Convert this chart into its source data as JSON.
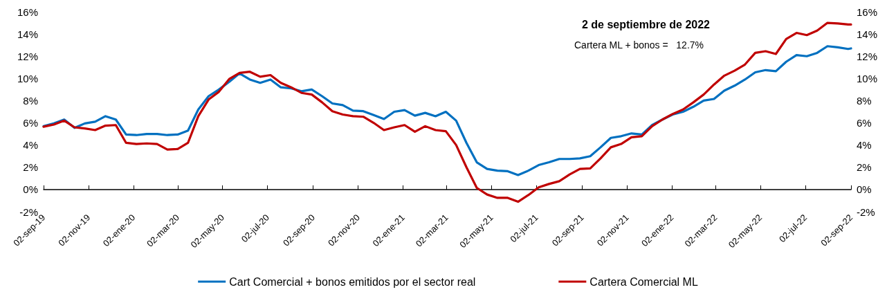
{
  "chart_data": {
    "type": "line",
    "title": "2 de septiembre de 2022",
    "annotations": [
      "Cartera ML + bonos =   12.7%"
    ],
    "x": [
      "2019-09-02",
      "2019-09-16",
      "2019-09-30",
      "2019-10-14",
      "2019-10-28",
      "2019-11-11",
      "2019-11-25",
      "2019-12-09",
      "2019-12-23",
      "2020-01-06",
      "2020-01-20",
      "2020-02-03",
      "2020-02-17",
      "2020-03-02",
      "2020-03-16",
      "2020-03-30",
      "2020-04-13",
      "2020-04-27",
      "2020-05-11",
      "2020-05-25",
      "2020-06-08",
      "2020-06-22",
      "2020-07-06",
      "2020-07-20",
      "2020-08-03",
      "2020-08-17",
      "2020-08-31",
      "2020-09-14",
      "2020-09-28",
      "2020-10-12",
      "2020-10-26",
      "2020-11-09",
      "2020-11-23",
      "2020-12-07",
      "2020-12-21",
      "2021-01-04",
      "2021-01-18",
      "2021-02-01",
      "2021-02-15",
      "2021-03-01",
      "2021-03-15",
      "2021-03-29",
      "2021-04-12",
      "2021-04-26",
      "2021-05-10",
      "2021-05-24",
      "2021-06-07",
      "2021-06-21",
      "2021-07-05",
      "2021-07-19",
      "2021-08-02",
      "2021-08-16",
      "2021-08-30",
      "2021-09-13",
      "2021-09-27",
      "2021-10-11",
      "2021-10-25",
      "2021-11-08",
      "2021-11-22",
      "2021-12-06",
      "2021-12-20",
      "2022-01-03",
      "2022-01-17",
      "2022-01-31",
      "2022-02-14",
      "2022-02-28",
      "2022-03-14",
      "2022-03-28",
      "2022-04-11",
      "2022-04-25",
      "2022-05-09",
      "2022-05-23",
      "2022-06-06",
      "2022-06-20",
      "2022-07-04",
      "2022-07-18",
      "2022-08-01",
      "2022-08-15",
      "2022-08-29",
      "2022-09-02"
    ],
    "series": [
      {
        "name": "Cart Comercial + bonos emitidos por el sector real",
        "color": "#0070c0",
        "values": [
          5.7,
          5.95,
          6.3,
          5.55,
          5.95,
          6.1,
          6.6,
          6.3,
          4.95,
          4.9,
          5.0,
          5.0,
          4.9,
          4.95,
          5.3,
          7.2,
          8.4,
          9.0,
          9.7,
          10.45,
          9.9,
          9.6,
          9.9,
          9.2,
          9.1,
          8.85,
          9.0,
          8.4,
          7.75,
          7.6,
          7.1,
          7.05,
          6.7,
          6.35,
          7.0,
          7.15,
          6.65,
          6.9,
          6.6,
          7.0,
          6.2,
          4.2,
          2.45,
          1.85,
          1.7,
          1.65,
          1.3,
          1.7,
          2.2,
          2.45,
          2.75,
          2.75,
          2.8,
          3.0,
          3.8,
          4.65,
          4.8,
          5.05,
          4.95,
          5.8,
          6.3,
          6.75,
          7.0,
          7.45,
          8.0,
          8.15,
          8.9,
          9.35,
          9.9,
          10.55,
          10.75,
          10.65,
          11.5,
          12.1,
          12.0,
          12.3,
          12.9,
          12.8,
          12.65,
          12.7
        ]
      },
      {
        "name": "Cartera Comercial ML",
        "color": "#c00000",
        "values": [
          5.65,
          5.85,
          6.2,
          5.6,
          5.5,
          5.35,
          5.75,
          5.8,
          4.2,
          4.1,
          4.15,
          4.1,
          3.6,
          3.65,
          4.2,
          6.6,
          8.1,
          8.8,
          9.95,
          10.5,
          10.6,
          10.15,
          10.3,
          9.6,
          9.2,
          8.7,
          8.55,
          7.85,
          7.05,
          6.75,
          6.6,
          6.55,
          6.0,
          5.35,
          5.6,
          5.8,
          5.2,
          5.7,
          5.35,
          5.25,
          4.0,
          2.0,
          0.15,
          -0.45,
          -0.75,
          -0.75,
          -1.1,
          -0.5,
          0.2,
          0.5,
          0.75,
          1.35,
          1.85,
          1.9,
          2.8,
          3.8,
          4.1,
          4.7,
          4.8,
          5.7,
          6.3,
          6.8,
          7.2,
          7.85,
          8.55,
          9.45,
          10.25,
          10.7,
          11.25,
          12.3,
          12.45,
          12.2,
          13.55,
          14.1,
          13.9,
          14.3,
          15.0,
          14.95,
          14.85,
          14.85
        ]
      }
    ],
    "xlim": [
      "2019-09-02",
      "2022-09-02"
    ],
    "xticks": [
      {
        "value": "2019-09-02",
        "label": "02-sep-19"
      },
      {
        "value": "2019-11-02",
        "label": "02-nov-19"
      },
      {
        "value": "2020-01-02",
        "label": "02-ene-20"
      },
      {
        "value": "2020-03-02",
        "label": "02-mar-20"
      },
      {
        "value": "2020-05-02",
        "label": "02-may-20"
      },
      {
        "value": "2020-07-02",
        "label": "02-jul-20"
      },
      {
        "value": "2020-09-02",
        "label": "02-sep-20"
      },
      {
        "value": "2020-11-02",
        "label": "02-nov-20"
      },
      {
        "value": "2021-01-02",
        "label": "02-ene-21"
      },
      {
        "value": "2021-03-02",
        "label": "02-mar-21"
      },
      {
        "value": "2021-05-02",
        "label": "02-may-21"
      },
      {
        "value": "2021-07-02",
        "label": "02-jul-21"
      },
      {
        "value": "2021-09-02",
        "label": "02-sep-21"
      },
      {
        "value": "2021-11-02",
        "label": "02-nov-21"
      },
      {
        "value": "2022-01-02",
        "label": "02-ene-22"
      },
      {
        "value": "2022-03-02",
        "label": "02-mar-22"
      },
      {
        "value": "2022-05-02",
        "label": "02-may-22"
      },
      {
        "value": "2022-07-02",
        "label": "02-jul-22"
      },
      {
        "value": "2022-09-02",
        "label": "02-sep-22"
      }
    ],
    "ylim": [
      -2,
      16
    ],
    "yticks": [
      {
        "value": -2,
        "label": "-2%"
      },
      {
        "value": 0,
        "label": "0%"
      },
      {
        "value": 2,
        "label": "2%"
      },
      {
        "value": 4,
        "label": "4%"
      },
      {
        "value": 6,
        "label": "6%"
      },
      {
        "value": 8,
        "label": "8%"
      },
      {
        "value": 10,
        "label": "10%"
      },
      {
        "value": 12,
        "label": "12%"
      },
      {
        "value": 14,
        "label": "14%"
      },
      {
        "value": 16,
        "label": "16%"
      }
    ],
    "y2lim": [
      -2,
      16
    ],
    "y2ticks": [
      {
        "value": -2,
        "label": "-2%"
      },
      {
        "value": 0,
        "label": "0%"
      },
      {
        "value": 2,
        "label": "2%"
      },
      {
        "value": 4,
        "label": "4%"
      },
      {
        "value": 6,
        "label": "6%"
      },
      {
        "value": 8,
        "label": "8%"
      },
      {
        "value": 10,
        "label": "10%"
      },
      {
        "value": 12,
        "label": "12%"
      },
      {
        "value": 14,
        "label": "14%"
      },
      {
        "value": 16,
        "label": "16%"
      }
    ],
    "grid": false,
    "legend": "bottom",
    "marker": "none",
    "line_style": "solid"
  }
}
